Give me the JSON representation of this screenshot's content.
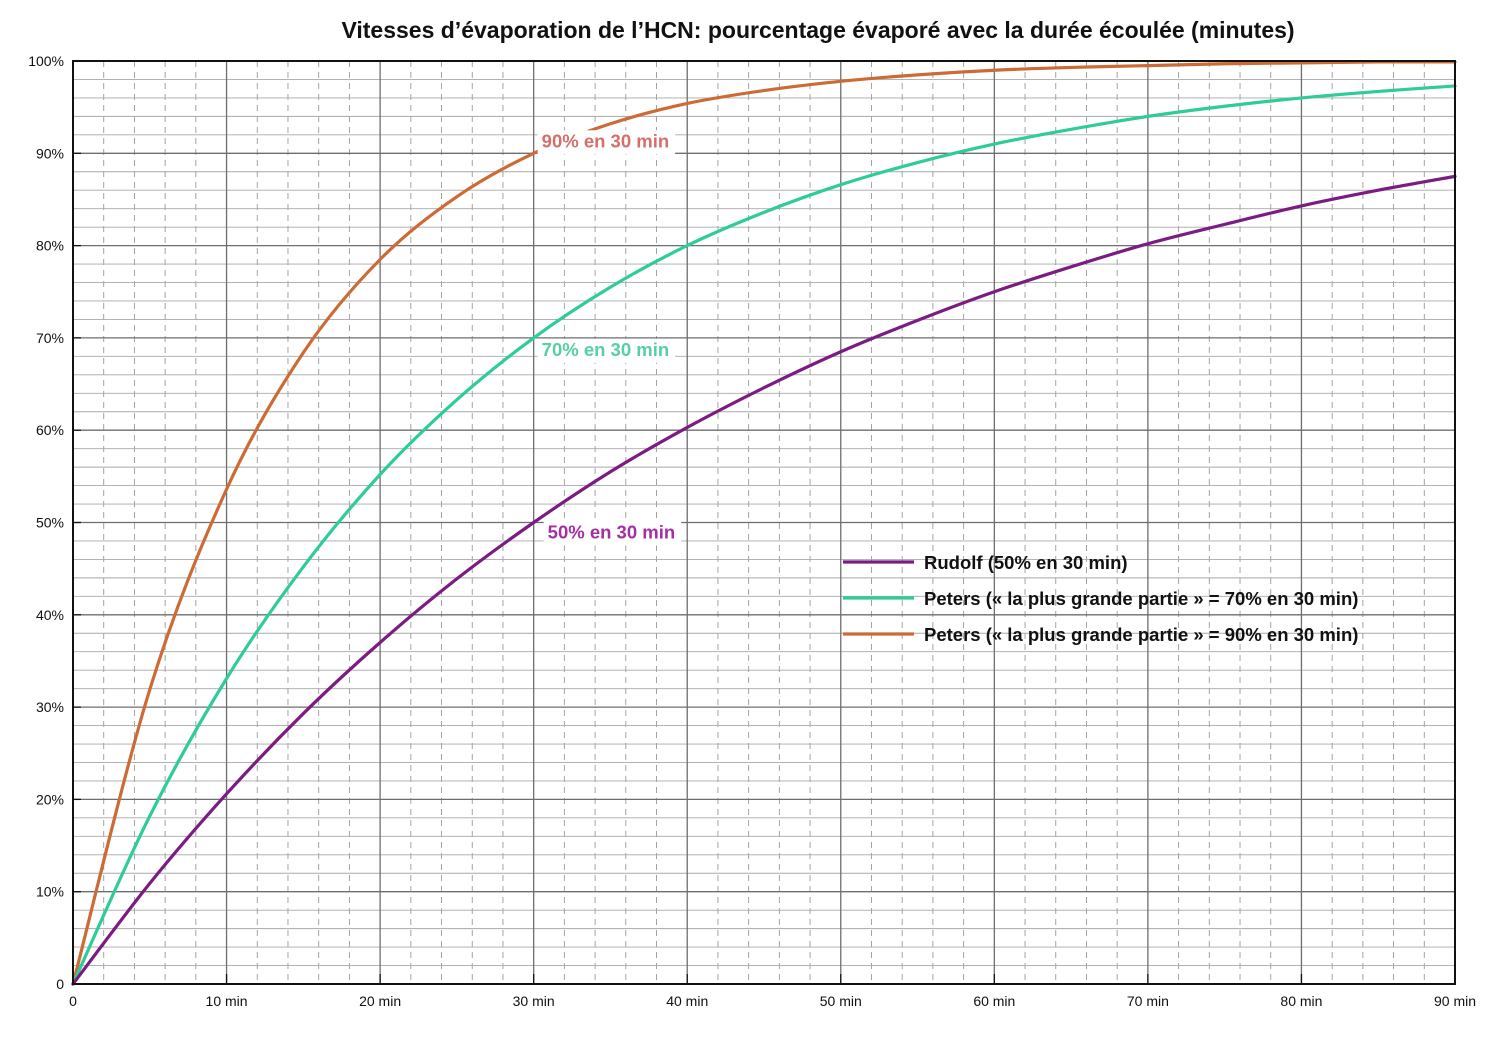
{
  "chart_data": {
    "type": "line",
    "title": "Vitesses d’évaporation de l’HCN: pourcentage évaporé avec la durée écoulée (minutes)",
    "xlabel": "",
    "ylabel": "",
    "xlim": [
      0,
      90
    ],
    "ylim": [
      0,
      100
    ],
    "x_ticks": [
      {
        "value": 0,
        "label": "0"
      },
      {
        "value": 10,
        "label": "10 min"
      },
      {
        "value": 20,
        "label": "20 min"
      },
      {
        "value": 30,
        "label": "30 min"
      },
      {
        "value": 40,
        "label": "40 min"
      },
      {
        "value": 50,
        "label": "50 min"
      },
      {
        "value": 60,
        "label": "60 min"
      },
      {
        "value": 70,
        "label": "70 min"
      },
      {
        "value": 80,
        "label": "80 min"
      },
      {
        "value": 90,
        "label": "90 min"
      }
    ],
    "y_ticks": [
      {
        "value": 0,
        "label": "0"
      },
      {
        "value": 10,
        "label": "10%"
      },
      {
        "value": 20,
        "label": "20%"
      },
      {
        "value": 30,
        "label": "30%"
      },
      {
        "value": 40,
        "label": "40%"
      },
      {
        "value": 50,
        "label": "50%"
      },
      {
        "value": 60,
        "label": "60%"
      },
      {
        "value": 70,
        "label": "70%"
      },
      {
        "value": 80,
        "label": "80%"
      },
      {
        "value": 90,
        "label": "90%"
      },
      {
        "value": 100,
        "label": "100%"
      }
    ],
    "grid": true,
    "legend_position": "center-right",
    "x": [
      0,
      5,
      10,
      15,
      20,
      25,
      30,
      35,
      40,
      45,
      50,
      55,
      60,
      65,
      70,
      75,
      80,
      85,
      90
    ],
    "series": [
      {
        "name": "Rudolf (50% en 30 min)",
        "color": "#7b1c83",
        "values": [
          0,
          10.9,
          20.6,
          29.3,
          37.0,
          43.9,
          50.0,
          55.5,
          60.3,
          64.6,
          68.5,
          71.9,
          75.0,
          77.7,
          80.2,
          82.3,
          84.3,
          86.0,
          87.5
        ]
      },
      {
        "name": "Peters (« la plus grande partie » = 70% en 30 min)",
        "color": "#2ecc9b",
        "values": [
          0,
          18.2,
          33.1,
          45.2,
          55.2,
          63.3,
          70.0,
          75.5,
          80.0,
          83.6,
          86.6,
          89.0,
          91.0,
          92.6,
          94.0,
          95.1,
          96.0,
          96.7,
          97.3
        ]
      },
      {
        "name": "Peters (« la plus grande partie » = 90% en 30 min)",
        "color": "#cc6b35",
        "values": [
          0,
          31.9,
          53.6,
          68.4,
          78.5,
          85.3,
          90.0,
          93.2,
          95.4,
          96.8,
          97.8,
          98.5,
          99.0,
          99.3,
          99.5,
          99.7,
          99.8,
          99.9,
          99.9
        ]
      }
    ],
    "annotations": [
      {
        "text": "90% en 30 min",
        "x": 30,
        "y": 90,
        "color": "#d46f6a"
      },
      {
        "text": "70% en 30 min",
        "x": 30,
        "y": 70,
        "color": "#56d0a2"
      },
      {
        "text": "50% en 30 min",
        "x": 30,
        "y": 50,
        "color": "#a42ea4"
      }
    ]
  }
}
